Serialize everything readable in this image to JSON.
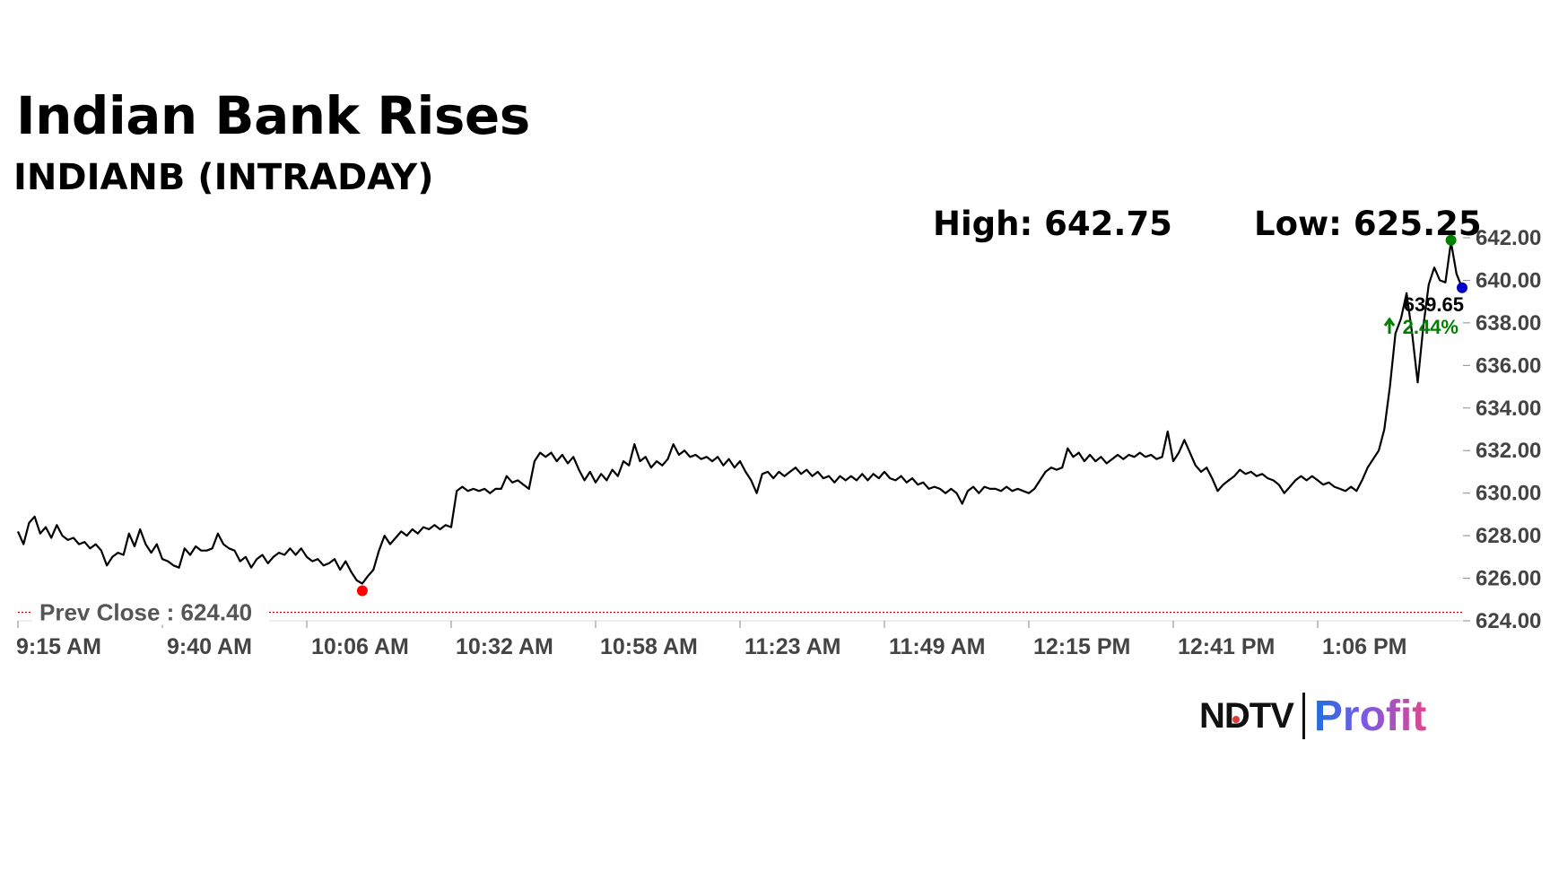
{
  "header": {
    "title": "Indian Bank Rises",
    "subtitle": "INDIANB (INTRADAY)",
    "high_text": "High: 642.75",
    "low_text": "Low: 625.25"
  },
  "last_price": {
    "value": "639.65",
    "change": "2.44%",
    "change_icon": "up-arrow-icon",
    "change_color": "#008000"
  },
  "prev_close": {
    "label": "Prev Close : 624.40",
    "value": 624.4,
    "color": "#cc0000"
  },
  "logo": {
    "left": "NDTV",
    "right": "Profit"
  },
  "colors": {
    "line": "#000000",
    "high_marker": "#008000",
    "low_marker": "#ff0000",
    "last_marker": "#0000cc"
  },
  "chart_data": {
    "type": "line",
    "title": "Indian Bank Rises",
    "subtitle": "INDIANB (INTRADAY)",
    "xlabel": "",
    "ylabel": "",
    "x_ticks": [
      "9:15 AM",
      "9:40 AM",
      "10:06 AM",
      "10:32 AM",
      "10:58 AM",
      "11:23 AM",
      "11:49 AM",
      "12:15 PM",
      "12:41 PM",
      "1:06 PM"
    ],
    "y_ticks": [
      "642.00",
      "640.00",
      "638.00",
      "636.00",
      "634.00",
      "632.00",
      "630.00",
      "628.00",
      "626.00",
      "624.00"
    ],
    "ylim": [
      624,
      642
    ],
    "xlim_minutes_from_open": [
      0,
      260
    ],
    "grid": false,
    "y_axis_side": "right",
    "series": [
      {
        "values": [
          [
            0,
            628.2
          ],
          [
            1,
            627.6
          ],
          [
            2,
            628.6
          ],
          [
            3,
            628.9
          ],
          [
            4,
            628.1
          ],
          [
            5,
            628.4
          ],
          [
            6,
            627.9
          ],
          [
            7,
            628.5
          ],
          [
            8,
            628.0
          ],
          [
            9,
            627.8
          ],
          [
            10,
            627.9
          ],
          [
            11,
            627.6
          ],
          [
            12,
            627.7
          ],
          [
            13,
            627.4
          ],
          [
            14,
            627.6
          ],
          [
            15,
            627.3
          ],
          [
            16,
            626.6
          ],
          [
            17,
            627.0
          ],
          [
            18,
            627.2
          ],
          [
            19,
            627.1
          ],
          [
            20,
            628.1
          ],
          [
            21,
            627.5
          ],
          [
            22,
            628.3
          ],
          [
            23,
            627.6
          ],
          [
            24,
            627.2
          ],
          [
            25,
            627.6
          ],
          [
            26,
            626.9
          ],
          [
            27,
            626.8
          ],
          [
            28,
            626.6
          ],
          [
            29,
            626.5
          ],
          [
            30,
            627.4
          ],
          [
            31,
            627.1
          ],
          [
            32,
            627.5
          ],
          [
            33,
            627.3
          ],
          [
            34,
            627.3
          ],
          [
            35,
            627.4
          ],
          [
            36,
            628.1
          ],
          [
            37,
            627.6
          ],
          [
            38,
            627.4
          ],
          [
            39,
            627.3
          ],
          [
            40,
            626.8
          ],
          [
            41,
            627.0
          ],
          [
            42,
            626.5
          ],
          [
            43,
            626.9
          ],
          [
            44,
            627.1
          ],
          [
            45,
            626.7
          ],
          [
            46,
            627.0
          ],
          [
            47,
            627.2
          ],
          [
            48,
            627.1
          ],
          [
            49,
            627.4
          ],
          [
            50,
            627.1
          ],
          [
            51,
            627.4
          ],
          [
            52,
            627.0
          ],
          [
            53,
            626.8
          ],
          [
            54,
            626.9
          ],
          [
            55,
            626.6
          ],
          [
            56,
            626.7
          ],
          [
            57,
            626.9
          ],
          [
            58,
            626.4
          ],
          [
            59,
            626.8
          ],
          [
            60,
            626.3
          ],
          [
            61,
            625.9
          ],
          [
            62,
            625.75
          ],
          [
            63,
            626.1
          ],
          [
            64,
            626.4
          ],
          [
            65,
            627.3
          ],
          [
            66,
            628.0
          ],
          [
            67,
            627.6
          ],
          [
            68,
            627.9
          ],
          [
            69,
            628.2
          ],
          [
            70,
            628.0
          ],
          [
            71,
            628.3
          ],
          [
            72,
            628.1
          ],
          [
            73,
            628.4
          ],
          [
            74,
            628.3
          ],
          [
            75,
            628.5
          ],
          [
            76,
            628.3
          ],
          [
            77,
            628.5
          ],
          [
            78,
            628.4
          ],
          [
            79,
            630.1
          ],
          [
            80,
            630.3
          ],
          [
            81,
            630.1
          ],
          [
            82,
            630.2
          ],
          [
            83,
            630.1
          ],
          [
            84,
            630.2
          ],
          [
            85,
            630.0
          ],
          [
            86,
            630.2
          ],
          [
            87,
            630.2
          ],
          [
            88,
            630.8
          ],
          [
            89,
            630.5
          ],
          [
            90,
            630.6
          ],
          [
            91,
            630.4
          ],
          [
            92,
            630.2
          ],
          [
            93,
            631.5
          ],
          [
            94,
            631.9
          ],
          [
            95,
            631.7
          ],
          [
            96,
            631.9
          ],
          [
            97,
            631.5
          ],
          [
            98,
            631.8
          ],
          [
            99,
            631.4
          ],
          [
            100,
            631.7
          ],
          [
            101,
            631.1
          ],
          [
            102,
            630.6
          ],
          [
            103,
            631.0
          ],
          [
            104,
            630.5
          ],
          [
            105,
            630.9
          ],
          [
            106,
            630.6
          ],
          [
            107,
            631.1
          ],
          [
            108,
            630.8
          ],
          [
            109,
            631.5
          ],
          [
            110,
            631.3
          ],
          [
            111,
            632.3
          ],
          [
            112,
            631.5
          ],
          [
            113,
            631.7
          ],
          [
            114,
            631.2
          ],
          [
            115,
            631.5
          ],
          [
            116,
            631.3
          ],
          [
            117,
            631.6
          ],
          [
            118,
            632.3
          ],
          [
            119,
            631.8
          ],
          [
            120,
            632.0
          ],
          [
            121,
            631.7
          ],
          [
            122,
            631.8
          ],
          [
            123,
            631.6
          ],
          [
            124,
            631.7
          ],
          [
            125,
            631.5
          ],
          [
            126,
            631.7
          ],
          [
            127,
            631.3
          ],
          [
            128,
            631.6
          ],
          [
            129,
            631.2
          ],
          [
            130,
            631.5
          ],
          [
            131,
            631.0
          ],
          [
            132,
            630.6
          ],
          [
            133,
            630.0
          ],
          [
            134,
            630.9
          ],
          [
            135,
            631.0
          ],
          [
            136,
            630.7
          ],
          [
            137,
            631.0
          ],
          [
            138,
            630.8
          ],
          [
            139,
            631.0
          ],
          [
            140,
            631.2
          ],
          [
            141,
            630.9
          ],
          [
            142,
            631.1
          ],
          [
            143,
            630.8
          ],
          [
            144,
            631.0
          ],
          [
            145,
            630.7
          ],
          [
            146,
            630.8
          ],
          [
            147,
            630.5
          ],
          [
            148,
            630.8
          ],
          [
            149,
            630.6
          ],
          [
            150,
            630.8
          ],
          [
            151,
            630.6
          ],
          [
            152,
            630.9
          ],
          [
            153,
            630.6
          ],
          [
            154,
            630.9
          ],
          [
            155,
            630.7
          ],
          [
            156,
            631.0
          ],
          [
            157,
            630.7
          ],
          [
            158,
            630.6
          ],
          [
            159,
            630.8
          ],
          [
            160,
            630.5
          ],
          [
            161,
            630.7
          ],
          [
            162,
            630.4
          ],
          [
            163,
            630.5
          ],
          [
            164,
            630.2
          ],
          [
            165,
            630.3
          ],
          [
            166,
            630.2
          ],
          [
            167,
            630.0
          ],
          [
            168,
            630.2
          ],
          [
            169,
            630.0
          ],
          [
            170,
            629.5
          ],
          [
            171,
            630.1
          ],
          [
            172,
            630.3
          ],
          [
            173,
            630.0
          ],
          [
            174,
            630.3
          ],
          [
            175,
            630.2
          ],
          [
            176,
            630.2
          ],
          [
            177,
            630.1
          ],
          [
            178,
            630.3
          ],
          [
            179,
            630.1
          ],
          [
            180,
            630.2
          ],
          [
            181,
            630.1
          ],
          [
            182,
            630.0
          ],
          [
            183,
            630.2
          ],
          [
            184,
            630.6
          ],
          [
            185,
            631.0
          ],
          [
            186,
            631.2
          ],
          [
            187,
            631.1
          ],
          [
            188,
            631.2
          ],
          [
            189,
            632.1
          ],
          [
            190,
            631.7
          ],
          [
            191,
            631.9
          ],
          [
            192,
            631.5
          ],
          [
            193,
            631.8
          ],
          [
            194,
            631.5
          ],
          [
            195,
            631.7
          ],
          [
            196,
            631.4
          ],
          [
            197,
            631.6
          ],
          [
            198,
            631.8
          ],
          [
            199,
            631.6
          ],
          [
            200,
            631.8
          ],
          [
            201,
            631.7
          ],
          [
            202,
            631.9
          ],
          [
            203,
            631.7
          ],
          [
            204,
            631.8
          ],
          [
            205,
            631.6
          ],
          [
            206,
            631.7
          ],
          [
            207,
            632.9
          ],
          [
            208,
            631.5
          ],
          [
            209,
            631.9
          ],
          [
            210,
            632.5
          ],
          [
            211,
            631.9
          ],
          [
            212,
            631.3
          ],
          [
            213,
            631.0
          ],
          [
            214,
            631.2
          ],
          [
            215,
            630.7
          ],
          [
            216,
            630.1
          ],
          [
            217,
            630.4
          ],
          [
            218,
            630.6
          ],
          [
            219,
            630.8
          ],
          [
            220,
            631.1
          ],
          [
            221,
            630.9
          ],
          [
            222,
            631.0
          ],
          [
            223,
            630.8
          ],
          [
            224,
            630.9
          ],
          [
            225,
            630.7
          ],
          [
            226,
            630.6
          ],
          [
            227,
            630.4
          ],
          [
            228,
            630.0
          ],
          [
            229,
            630.3
          ],
          [
            230,
            630.6
          ],
          [
            231,
            630.8
          ],
          [
            232,
            630.6
          ],
          [
            233,
            630.8
          ],
          [
            234,
            630.6
          ],
          [
            235,
            630.4
          ],
          [
            236,
            630.5
          ],
          [
            237,
            630.3
          ],
          [
            238,
            630.2
          ],
          [
            239,
            630.1
          ],
          [
            240,
            630.3
          ],
          [
            241,
            630.1
          ],
          [
            242,
            630.6
          ],
          [
            243,
            631.2
          ],
          [
            244,
            631.6
          ],
          [
            245,
            632.0
          ],
          [
            246,
            633.0
          ],
          [
            247,
            635.0
          ],
          [
            248,
            637.5
          ],
          [
            249,
            638.2
          ],
          [
            250,
            639.4
          ],
          [
            251,
            637.5
          ],
          [
            252,
            635.2
          ],
          [
            253,
            637.8
          ],
          [
            254,
            639.8
          ],
          [
            255,
            640.6
          ],
          [
            256,
            640.0
          ],
          [
            257,
            639.9
          ],
          [
            258,
            641.8
          ],
          [
            259,
            640.3
          ],
          [
            260,
            639.65
          ]
        ]
      }
    ],
    "annotations": {
      "high": 642.75,
      "low": 625.25,
      "last": 639.65,
      "change_pct": 2.44,
      "prev_close": 624.4
    }
  }
}
